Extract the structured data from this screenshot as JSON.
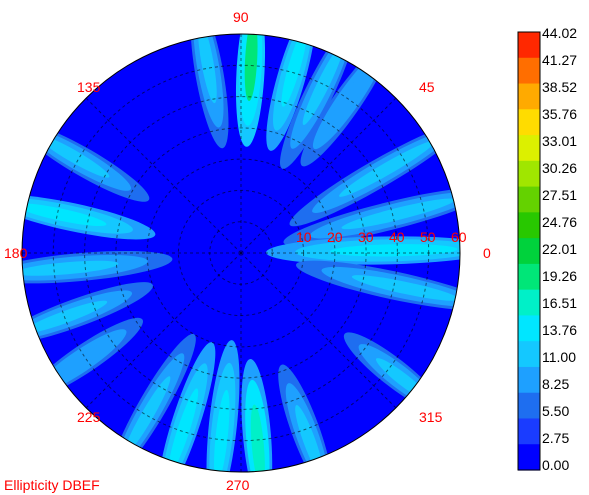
{
  "chart_data": {
    "type": "heatmap",
    "projection": "polar",
    "caption": "Ellipticity DBEF",
    "angle_labels": [
      "0",
      "45",
      "90",
      "135",
      "180",
      "225",
      "270",
      "315"
    ],
    "radial_labels": [
      "10",
      "20",
      "30",
      "40",
      "50",
      "60"
    ],
    "radial_max": 70,
    "colorbar": {
      "ticks": [
        "44.02",
        "41.27",
        "38.52",
        "35.76",
        "33.01",
        "30.26",
        "27.51",
        "24.76",
        "22.01",
        "19.26",
        "16.51",
        "13.76",
        "11.00",
        "8.25",
        "5.50",
        "2.75",
        "0.00"
      ],
      "min": 0.0,
      "max": 44.02,
      "colors": [
        "#0000ff",
        "#1a3cff",
        "#1e6ef0",
        "#1ea0ff",
        "#14c8ff",
        "#00e6ff",
        "#00f0c8",
        "#00e678",
        "#00d23c",
        "#28c800",
        "#64d200",
        "#a0e600",
        "#dcf000",
        "#ffdc00",
        "#ffaa00",
        "#ff6e00",
        "#ff2800"
      ]
    },
    "background_value": 0.0,
    "lobes": [
      {
        "name": "top-1",
        "theta": 100,
        "r": 58,
        "value": 12
      },
      {
        "name": "top-2",
        "theta": 87,
        "r": 58,
        "value": 18
      },
      {
        "name": "top-3",
        "theta": 74,
        "r": 58,
        "value": 13
      },
      {
        "name": "top-4",
        "theta": 64,
        "r": 56,
        "value": 11
      },
      {
        "name": "top-5",
        "theta": 55,
        "r": 58,
        "value": 9
      },
      {
        "name": "right-1",
        "theta": 30,
        "r": 50,
        "value": 12
      },
      {
        "name": "right-2",
        "theta": 14,
        "r": 48,
        "value": 11
      },
      {
        "name": "right-3",
        "theta": 1,
        "r": 45,
        "value": 13
      },
      {
        "name": "right-4",
        "theta": -12,
        "r": 50,
        "value": 10
      },
      {
        "name": "left-1",
        "theta": 150,
        "r": 58,
        "value": 12
      },
      {
        "name": "left-2",
        "theta": 168,
        "r": 55,
        "value": 15
      },
      {
        "name": "left-3",
        "theta": 185,
        "r": 52,
        "value": 11
      },
      {
        "name": "left-4",
        "theta": 200,
        "r": 56,
        "value": 12
      },
      {
        "name": "left-5",
        "theta": 214,
        "r": 60,
        "value": 9
      },
      {
        "name": "bottom-1",
        "theta": 240,
        "r": 56,
        "value": 12
      },
      {
        "name": "bottom-2",
        "theta": 252,
        "r": 56,
        "value": 13
      },
      {
        "name": "bottom-3",
        "theta": 264,
        "r": 55,
        "value": 14
      },
      {
        "name": "bottom-4",
        "theta": 275,
        "r": 58,
        "value": 17
      },
      {
        "name": "bottom-5",
        "theta": 290,
        "r": 60,
        "value": 10
      },
      {
        "name": "bottom-6",
        "theta": 322,
        "r": 62,
        "value": 11
      }
    ]
  }
}
